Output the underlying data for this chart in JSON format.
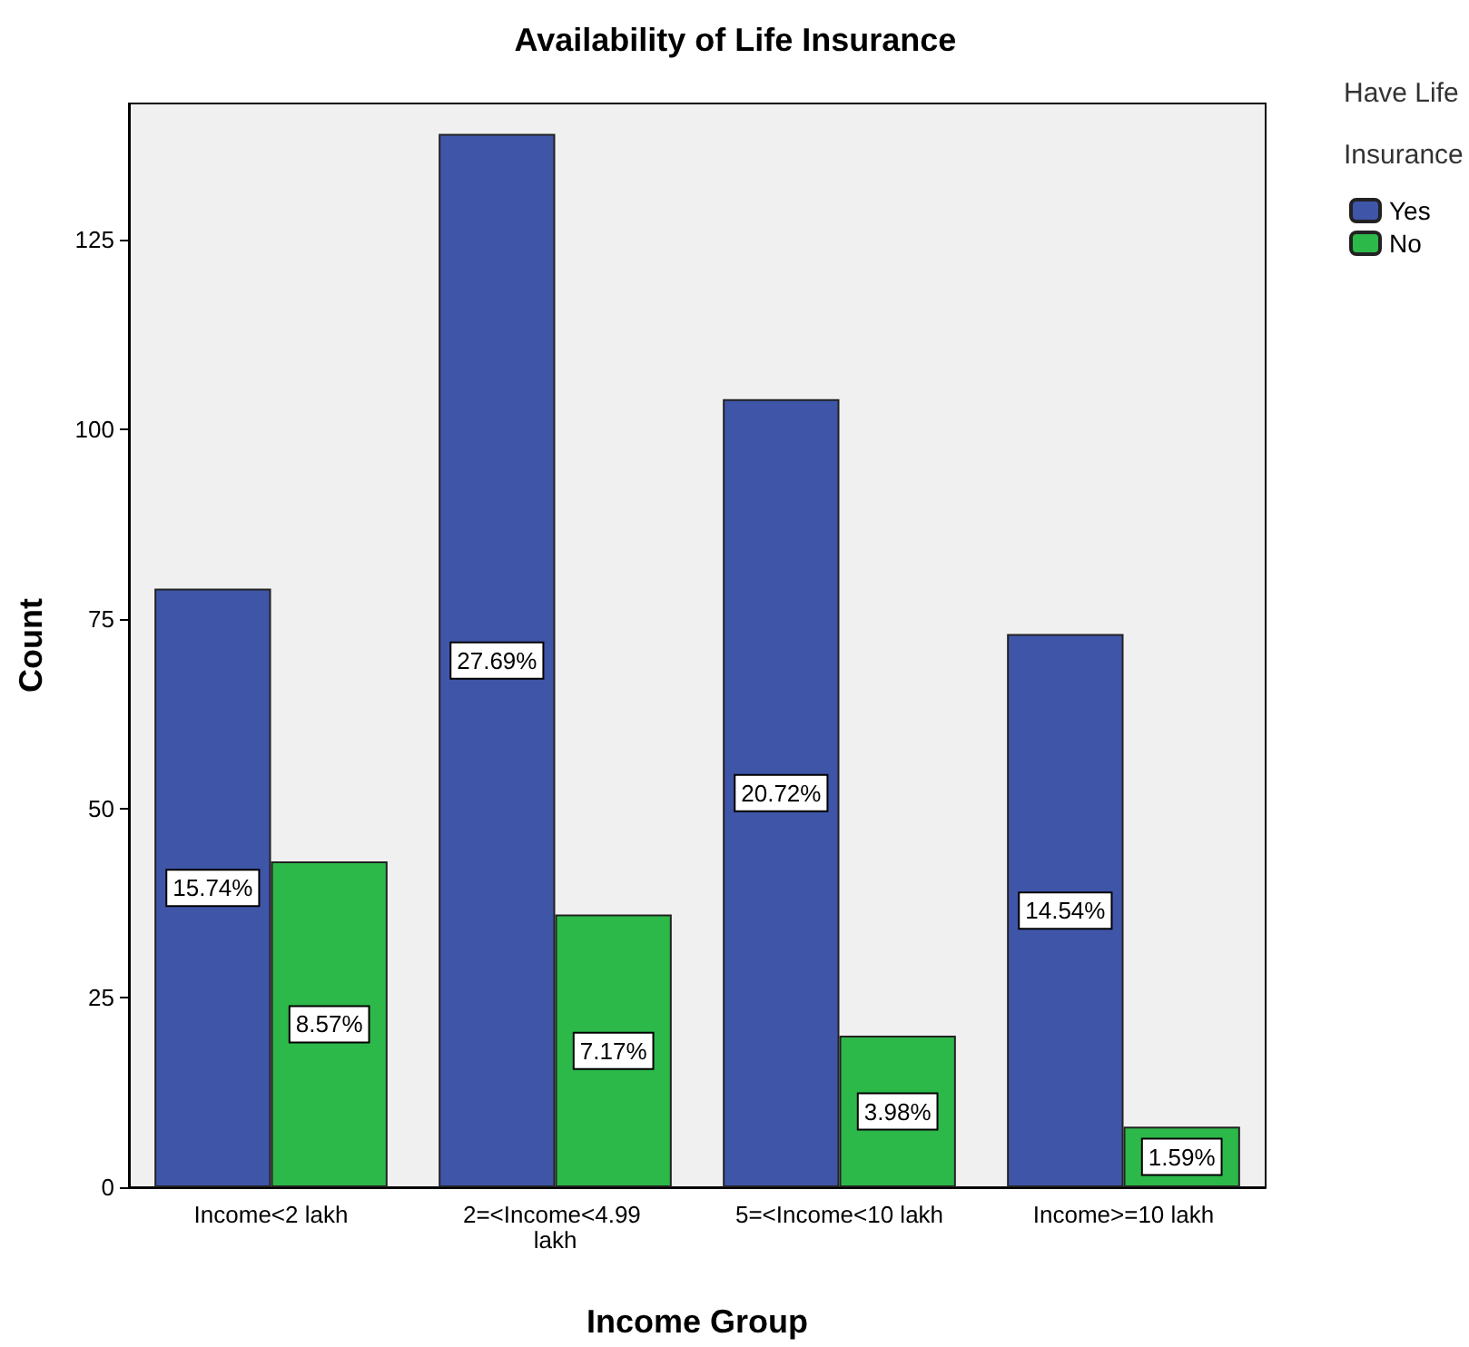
{
  "chart_data": {
    "type": "bar",
    "title": "Availability of Life Insurance",
    "xlabel": "Income Group",
    "ylabel": "Count",
    "legend_title": "Have Life Insurance",
    "categories": [
      "Income<2 lakh",
      "2=<Income<4.99 lakh",
      "5=<Income<10 lakh",
      "Income>=10 lakh"
    ],
    "series": [
      {
        "name": "Yes",
        "color": "#3f55a8",
        "values": [
          79,
          139,
          104,
          73
        ]
      },
      {
        "name": "No",
        "color": "#2db84a",
        "values": [
          43,
          36,
          20,
          8
        ]
      }
    ],
    "annotations": [
      {
        "text": "15.74%",
        "x": "Income<2 lakh",
        "y": 39.5
      },
      {
        "text": "27.69%",
        "x": "2=<Income<4.99 lakh",
        "y": 69.5
      },
      {
        "text": "20.72%",
        "x": "5=<Income<10 lakh",
        "y": 52
      },
      {
        "text": "14.54%",
        "x": "Income>=10 lakh",
        "y": 36.5
      },
      {
        "text": "8.57%",
        "x": "Income<2 lakh",
        "y": 21.5
      },
      {
        "text": "7.17%",
        "x": "2=<Income<4.99 lakh",
        "y": 18
      },
      {
        "text": "3.98%",
        "x": "5=<Income<10 lakh",
        "y": 10
      },
      {
        "text": "1.59%",
        "x": "Income>=10 lakh",
        "y": 4
      }
    ],
    "ylim": [
      0,
      143
    ],
    "yticks": [
      0,
      25,
      50,
      75,
      100,
      125
    ],
    "grid": false,
    "legend": "top right"
  }
}
